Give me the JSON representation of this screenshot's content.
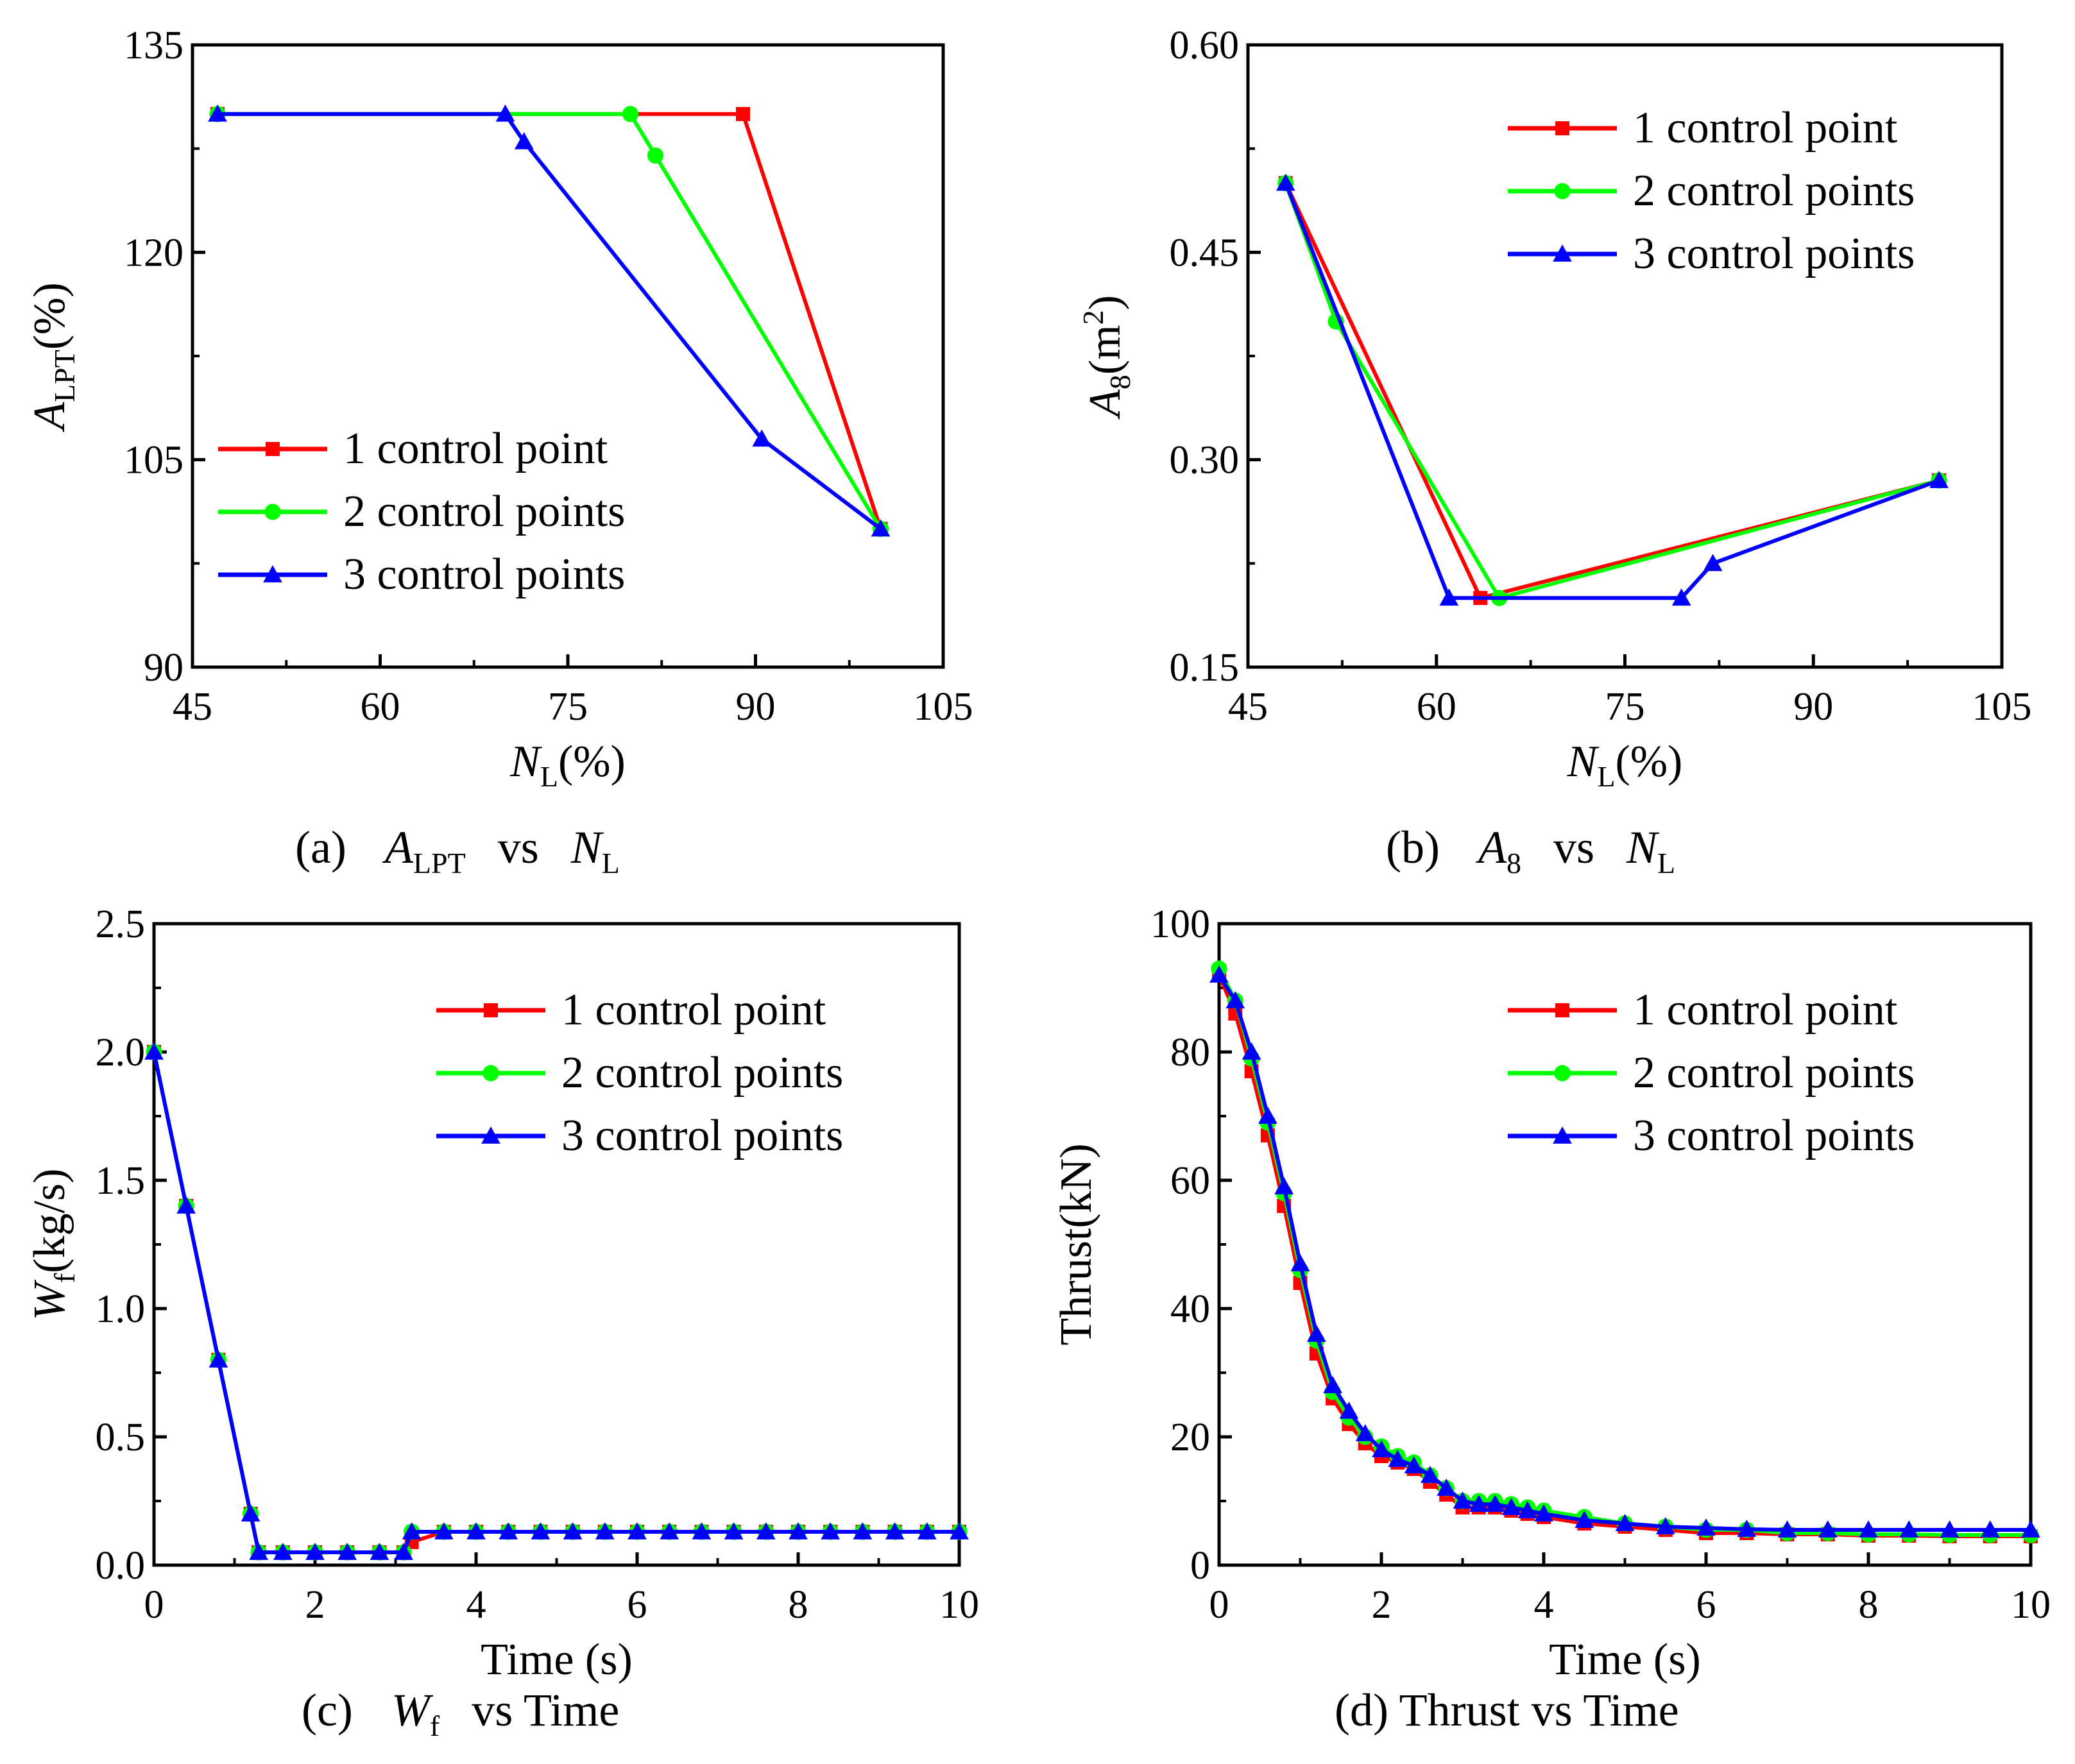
{
  "colors": {
    "red": "#ff0000",
    "green": "#00ff00",
    "blue": "#0000ff",
    "axis": "#000000"
  },
  "chart_data": [
    {
      "id": "a",
      "type": "line",
      "caption": {
        "label": "(a)",
        "y_var": "A",
        "y_sub": "LPT",
        "vs": "vs",
        "x_var": "N",
        "x_sub": "L"
      },
      "ylabel": {
        "var": "A",
        "sub": "LPT",
        "unit": "(%)"
      },
      "xlabel": {
        "var": "N",
        "sub": "L",
        "unit": "(%)"
      },
      "xlim": [
        45,
        105
      ],
      "ylim": [
        90,
        135
      ],
      "xticks": [
        "45",
        "60",
        "75",
        "90",
        "105"
      ],
      "yticks": [
        "90",
        "105",
        "120",
        "135"
      ],
      "legend_pos": "bottom-left",
      "series": [
        {
          "name": "1 control point",
          "color": "red",
          "marker": "square",
          "x": [
            47,
            89,
            100
          ],
          "y": [
            130,
            130,
            100
          ]
        },
        {
          "name": "2 control points",
          "color": "green",
          "marker": "circle",
          "x": [
            47,
            80,
            82,
            100
          ],
          "y": [
            130,
            130,
            127,
            100
          ]
        },
        {
          "name": "3 control points",
          "color": "blue",
          "marker": "triangle",
          "x": [
            47,
            70,
            71.5,
            90.5,
            100
          ],
          "y": [
            130,
            130,
            128,
            106.5,
            100
          ]
        }
      ]
    },
    {
      "id": "b",
      "type": "line",
      "caption": {
        "label": "(b)",
        "y_var": "A",
        "y_sub": "8",
        "vs": "vs",
        "x_var": "N",
        "x_sub": "L"
      },
      "ylabel": {
        "var": "A",
        "sub": "8",
        "unit_pre": "(m",
        "unit_sup": "2",
        "unit_post": ")"
      },
      "xlabel": {
        "var": "N",
        "sub": "L",
        "unit": "(%)"
      },
      "xlim": [
        45,
        105
      ],
      "ylim": [
        0.15,
        0.6
      ],
      "xticks": [
        "45",
        "60",
        "75",
        "90",
        "105"
      ],
      "yticks": [
        "0.15",
        "0.30",
        "0.45",
        "0.60"
      ],
      "legend_pos": "top-right",
      "series": [
        {
          "name": "1 control point",
          "color": "red",
          "marker": "square",
          "x": [
            48,
            63.5,
            100
          ],
          "y": [
            0.5,
            0.2,
            0.285
          ]
        },
        {
          "name": "2 control points",
          "color": "green",
          "marker": "circle",
          "x": [
            48,
            52,
            65,
            100
          ],
          "y": [
            0.5,
            0.4,
            0.2,
            0.285
          ]
        },
        {
          "name": "3 control points",
          "color": "blue",
          "marker": "triangle",
          "x": [
            48,
            61,
            79.5,
            82,
            100
          ],
          "y": [
            0.5,
            0.2,
            0.2,
            0.225,
            0.285
          ]
        }
      ]
    },
    {
      "id": "c",
      "type": "line",
      "caption": {
        "label": "(c)",
        "y_var": "W",
        "y_sub": "f",
        "vs": "vs Time"
      },
      "ylabel": {
        "var": "W",
        "sub": "f",
        "unit": "(kg/s)"
      },
      "xlabel": {
        "text": "Time (s)"
      },
      "xlim": [
        0,
        10
      ],
      "ylim": [
        0,
        2.5
      ],
      "xticks": [
        "0",
        "2",
        "4",
        "6",
        "8",
        "10"
      ],
      "yticks": [
        "0.0",
        "0.5",
        "1.0",
        "1.5",
        "2.0",
        "2.5"
      ],
      "legend_pos": "top-right",
      "series": [
        {
          "name": "1 control point",
          "color": "red",
          "marker": "square",
          "x": [
            0,
            0.4,
            0.8,
            1.2,
            1.3,
            1.6,
            2.0,
            2.4,
            2.8,
            3.1,
            3.2,
            3.6,
            4.0,
            4.4,
            4.8,
            5.2,
            5.6,
            6.0,
            6.4,
            6.8,
            7.2,
            7.6,
            8.0,
            8.4,
            8.8,
            9.2,
            9.6,
            10
          ],
          "y": [
            2.0,
            1.4,
            0.8,
            0.2,
            0.05,
            0.05,
            0.05,
            0.05,
            0.05,
            0.05,
            0.09,
            0.13,
            0.13,
            0.13,
            0.13,
            0.13,
            0.13,
            0.13,
            0.13,
            0.13,
            0.13,
            0.13,
            0.13,
            0.13,
            0.13,
            0.13,
            0.13,
            0.13
          ]
        },
        {
          "name": "2 control points",
          "color": "green",
          "marker": "circle",
          "x": [
            0,
            0.4,
            0.8,
            1.2,
            1.3,
            1.6,
            2.0,
            2.4,
            2.8,
            3.1,
            3.2,
            3.6,
            4.0,
            4.4,
            4.8,
            5.2,
            5.6,
            6.0,
            6.4,
            6.8,
            7.2,
            7.6,
            8.0,
            8.4,
            8.8,
            9.2,
            9.6,
            10
          ],
          "y": [
            2.0,
            1.4,
            0.8,
            0.2,
            0.05,
            0.05,
            0.05,
            0.05,
            0.05,
            0.05,
            0.13,
            0.13,
            0.13,
            0.13,
            0.13,
            0.13,
            0.13,
            0.13,
            0.13,
            0.13,
            0.13,
            0.13,
            0.13,
            0.13,
            0.13,
            0.13,
            0.13,
            0.13
          ]
        },
        {
          "name": "3 control points",
          "color": "blue",
          "marker": "triangle",
          "x": [
            0,
            0.4,
            0.8,
            1.2,
            1.3,
            1.6,
            2.0,
            2.4,
            2.8,
            3.1,
            3.2,
            3.6,
            4.0,
            4.4,
            4.8,
            5.2,
            5.6,
            6.0,
            6.4,
            6.8,
            7.2,
            7.6,
            8.0,
            8.4,
            8.8,
            9.2,
            9.6,
            10
          ],
          "y": [
            2.0,
            1.4,
            0.8,
            0.2,
            0.05,
            0.05,
            0.05,
            0.05,
            0.05,
            0.05,
            0.13,
            0.13,
            0.13,
            0.13,
            0.13,
            0.13,
            0.13,
            0.13,
            0.13,
            0.13,
            0.13,
            0.13,
            0.13,
            0.13,
            0.13,
            0.13,
            0.13,
            0.13
          ]
        }
      ]
    },
    {
      "id": "d",
      "type": "line",
      "caption": {
        "label": "(d) Thrust vs Time"
      },
      "ylabel": {
        "text": "Thrust(kN)"
      },
      "xlabel": {
        "text": "Time (s)"
      },
      "xlim": [
        0,
        10
      ],
      "ylim": [
        0,
        100
      ],
      "xticks": [
        "0",
        "2",
        "4",
        "6",
        "8",
        "10"
      ],
      "yticks": [
        "0",
        "20",
        "40",
        "60",
        "80",
        "100"
      ],
      "legend_pos": "top-right",
      "series": [
        {
          "name": "1 control point",
          "color": "red",
          "marker": "square",
          "x": [
            0,
            0.2,
            0.4,
            0.6,
            0.8,
            1.0,
            1.2,
            1.4,
            1.6,
            1.8,
            2.0,
            2.2,
            2.4,
            2.6,
            2.8,
            3.0,
            3.2,
            3.4,
            3.6,
            3.8,
            4.0,
            4.5,
            5.0,
            5.5,
            6.0,
            6.5,
            7.0,
            7.5,
            8.0,
            8.5,
            9.0,
            9.5,
            10
          ],
          "y": [
            92,
            86,
            77,
            67,
            56,
            44,
            33,
            26,
            22,
            19,
            17,
            16,
            15,
            13,
            11,
            9,
            9,
            9,
            8.5,
            8,
            7.5,
            6.5,
            6,
            5.5,
            5,
            5,
            4.8,
            4.8,
            4.6,
            4.6,
            4.5,
            4.5,
            4.5
          ]
        },
        {
          "name": "2 control points",
          "color": "green",
          "marker": "circle",
          "x": [
            0,
            0.2,
            0.4,
            0.6,
            0.8,
            1.0,
            1.2,
            1.4,
            1.6,
            1.8,
            2.0,
            2.2,
            2.4,
            2.6,
            2.8,
            3.0,
            3.2,
            3.4,
            3.6,
            3.8,
            4.0,
            4.5,
            5.0,
            5.5,
            6.0,
            6.5,
            7.0,
            7.5,
            8.0,
            8.5,
            9.0,
            9.5,
            10
          ],
          "y": [
            93,
            88,
            79,
            69,
            58,
            46,
            35,
            27,
            23,
            20,
            18.5,
            17,
            16,
            14,
            12,
            10,
            10,
            10,
            9.5,
            9,
            8.5,
            7.5,
            6.5,
            6,
            5.5,
            5.5,
            5,
            5,
            4.8,
            4.8,
            4.7,
            4.7,
            4.7
          ]
        },
        {
          "name": "3 control points",
          "color": "blue",
          "marker": "triangle",
          "x": [
            0,
            0.2,
            0.4,
            0.6,
            0.8,
            1.0,
            1.2,
            1.4,
            1.6,
            1.8,
            2.0,
            2.2,
            2.4,
            2.6,
            2.8,
            3.0,
            3.2,
            3.4,
            3.6,
            3.8,
            4.0,
            4.5,
            5.0,
            5.5,
            6.0,
            6.5,
            7.0,
            7.5,
            8.0,
            8.5,
            9.0,
            9.5,
            10
          ],
          "y": [
            92,
            88,
            80,
            70,
            59,
            47,
            36,
            28,
            24,
            20.5,
            18,
            16.5,
            15.5,
            14,
            12,
            10,
            9.5,
            9.5,
            9,
            8.5,
            8,
            7,
            6.5,
            6,
            5.8,
            5.6,
            5.5,
            5.5,
            5.5,
            5.5,
            5.5,
            5.5,
            5.5
          ]
        }
      ]
    }
  ]
}
